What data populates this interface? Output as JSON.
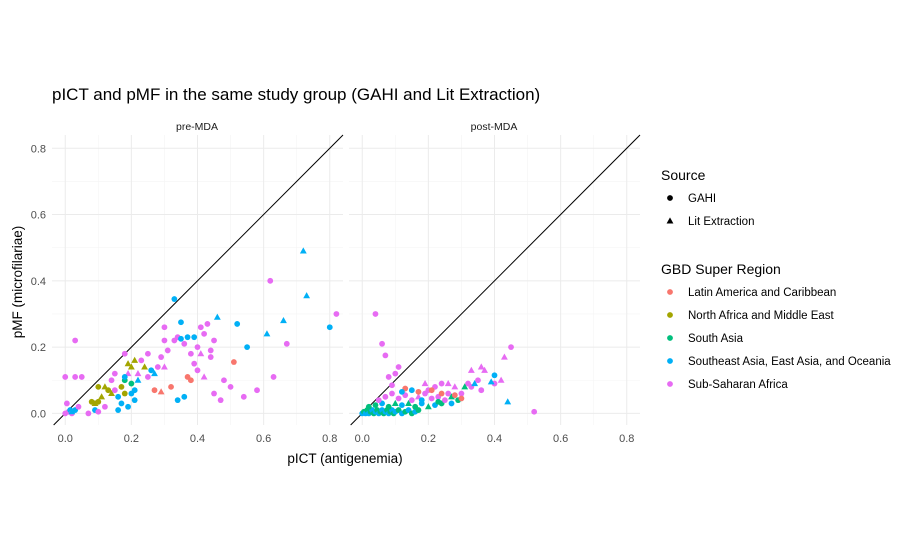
{
  "chart_data": {
    "type": "scatter",
    "title": "pICT and pMF in the same study group (GAHI and Lit Extraction)",
    "xlabel": "pICT (antigenemia)",
    "ylabel": "pMF (microfilariae)",
    "xlim": [
      -0.04,
      0.84
    ],
    "ylim": [
      -0.035,
      0.84
    ],
    "xticks": [
      "0.0",
      "0.2",
      "0.4",
      "0.6",
      "0.8"
    ],
    "yticks": [
      "0.0",
      "0.2",
      "0.4",
      "0.6",
      "0.8"
    ],
    "reference_line": "y = x",
    "grid": true,
    "facets": [
      "pre-MDA",
      "post-MDA"
    ],
    "shape_legend": {
      "title": "Source",
      "entries": [
        {
          "label": "GAHI",
          "shape": "circle"
        },
        {
          "label": "Lit Extraction",
          "shape": "triangle"
        }
      ]
    },
    "color_legend": {
      "title": "GBD Super Region",
      "entries": [
        {
          "label": "Latin America and Caribbean",
          "color": "#F8766D"
        },
        {
          "label": "North Africa and Middle East",
          "color": "#A3A500"
        },
        {
          "label": "South Asia",
          "color": "#00BF7D"
        },
        {
          "label": "Southeast Asia, East Asia, and Oceania",
          "color": "#00B0F6"
        },
        {
          "label": "Sub-Saharan Africa",
          "color": "#E76BF3"
        }
      ]
    },
    "legend_position": "right",
    "panels": [
      {
        "facet": "pre-MDA",
        "points": [
          [
            0.0,
            0.0,
            4,
            "c"
          ],
          [
            0.01,
            0.005,
            4,
            "c"
          ],
          [
            0.015,
            0.01,
            3,
            "c"
          ],
          [
            0.02,
            0.0,
            4,
            "c"
          ],
          [
            0.03,
            0.01,
            3,
            "c"
          ],
          [
            0.04,
            0.02,
            4,
            "c"
          ],
          [
            0.005,
            0.03,
            4,
            "c"
          ],
          [
            0.02,
            0.005,
            3,
            "t"
          ],
          [
            0.0,
            0.11,
            4,
            "c"
          ],
          [
            0.03,
            0.11,
            4,
            "c"
          ],
          [
            0.05,
            0.11,
            4,
            "c"
          ],
          [
            0.03,
            0.22,
            4,
            "c"
          ],
          [
            0.07,
            0.0,
            4,
            "c"
          ],
          [
            0.09,
            0.01,
            3,
            "c"
          ],
          [
            0.1,
            0.005,
            4,
            "c"
          ],
          [
            0.12,
            0.02,
            4,
            "c"
          ],
          [
            0.08,
            0.035,
            1,
            "c"
          ],
          [
            0.1,
            0.035,
            1,
            "c"
          ],
          [
            0.09,
            0.03,
            1,
            "t"
          ],
          [
            0.11,
            0.05,
            1,
            "t"
          ],
          [
            0.12,
            0.08,
            1,
            "t"
          ],
          [
            0.13,
            0.07,
            1,
            "c"
          ],
          [
            0.1,
            0.08,
            1,
            "c"
          ],
          [
            0.14,
            0.06,
            1,
            "t"
          ],
          [
            0.15,
            0.07,
            4,
            "c"
          ],
          [
            0.16,
            0.05,
            3,
            "c"
          ],
          [
            0.17,
            0.08,
            1,
            "c"
          ],
          [
            0.18,
            0.1,
            2,
            "c"
          ],
          [
            0.19,
            0.12,
            4,
            "t"
          ],
          [
            0.2,
            0.14,
            1,
            "t"
          ],
          [
            0.21,
            0.16,
            1,
            "t"
          ],
          [
            0.22,
            0.12,
            4,
            "t"
          ],
          [
            0.24,
            0.14,
            1,
            "t"
          ],
          [
            0.19,
            0.15,
            1,
            "t"
          ],
          [
            0.18,
            0.11,
            3,
            "c"
          ],
          [
            0.2,
            0.09,
            2,
            "c"
          ],
          [
            0.22,
            0.1,
            3,
            "t"
          ],
          [
            0.17,
            0.03,
            3,
            "c"
          ],
          [
            0.19,
            0.02,
            3,
            "c"
          ],
          [
            0.2,
            0.06,
            3,
            "c"
          ],
          [
            0.21,
            0.04,
            3,
            "c"
          ],
          [
            0.16,
            0.01,
            3,
            "c"
          ],
          [
            0.15,
            0.12,
            4,
            "c"
          ],
          [
            0.14,
            0.1,
            4,
            "c"
          ],
          [
            0.18,
            0.18,
            4,
            "c"
          ],
          [
            0.23,
            0.16,
            4,
            "c"
          ],
          [
            0.25,
            0.18,
            4,
            "c"
          ],
          [
            0.26,
            0.13,
            3,
            "c"
          ],
          [
            0.27,
            0.12,
            3,
            "t"
          ],
          [
            0.28,
            0.14,
            4,
            "c"
          ],
          [
            0.27,
            0.07,
            0,
            "c"
          ],
          [
            0.3,
            0.14,
            4,
            "t"
          ],
          [
            0.29,
            0.17,
            4,
            "c"
          ],
          [
            0.3,
            0.22,
            4,
            "c"
          ],
          [
            0.31,
            0.19,
            4,
            "c"
          ],
          [
            0.33,
            0.22,
            4,
            "c"
          ],
          [
            0.34,
            0.23,
            4,
            "c"
          ],
          [
            0.34,
            0.04,
            3,
            "c"
          ],
          [
            0.36,
            0.05,
            3,
            "c"
          ],
          [
            0.35,
            0.275,
            3,
            "c"
          ],
          [
            0.35,
            0.225,
            3,
            "c"
          ],
          [
            0.36,
            0.21,
            4,
            "c"
          ],
          [
            0.37,
            0.23,
            3,
            "c"
          ],
          [
            0.38,
            0.18,
            4,
            "c"
          ],
          [
            0.37,
            0.11,
            0,
            "c"
          ],
          [
            0.38,
            0.1,
            0,
            "c"
          ],
          [
            0.39,
            0.15,
            4,
            "c"
          ],
          [
            0.4,
            0.2,
            4,
            "c"
          ],
          [
            0.41,
            0.26,
            4,
            "c"
          ],
          [
            0.42,
            0.24,
            4,
            "c"
          ],
          [
            0.43,
            0.27,
            4,
            "c"
          ],
          [
            0.44,
            0.19,
            4,
            "c"
          ],
          [
            0.45,
            0.22,
            4,
            "c"
          ],
          [
            0.46,
            0.29,
            3,
            "t"
          ],
          [
            0.45,
            0.06,
            4,
            "c"
          ],
          [
            0.47,
            0.04,
            4,
            "c"
          ],
          [
            0.44,
            0.17,
            4,
            "c"
          ],
          [
            0.42,
            0.11,
            4,
            "t"
          ],
          [
            0.4,
            0.13,
            4,
            "c"
          ],
          [
            0.48,
            0.1,
            4,
            "c"
          ],
          [
            0.5,
            0.08,
            4,
            "c"
          ],
          [
            0.51,
            0.155,
            0,
            "c"
          ],
          [
            0.52,
            0.27,
            3,
            "c"
          ],
          [
            0.54,
            0.05,
            4,
            "c"
          ],
          [
            0.55,
            0.2,
            3,
            "c"
          ],
          [
            0.58,
            0.07,
            4,
            "c"
          ],
          [
            0.61,
            0.24,
            3,
            "t"
          ],
          [
            0.62,
            0.4,
            4,
            "c"
          ],
          [
            0.63,
            0.11,
            4,
            "c"
          ],
          [
            0.66,
            0.28,
            3,
            "t"
          ],
          [
            0.67,
            0.21,
            4,
            "c"
          ],
          [
            0.72,
            0.49,
            3,
            "t"
          ],
          [
            0.73,
            0.355,
            3,
            "t"
          ],
          [
            0.8,
            0.26,
            3,
            "c"
          ],
          [
            0.82,
            0.3,
            4,
            "c"
          ],
          [
            0.33,
            0.345,
            3,
            "c"
          ],
          [
            0.3,
            0.26,
            4,
            "c"
          ],
          [
            0.32,
            0.08,
            0,
            "c"
          ],
          [
            0.29,
            0.065,
            0,
            "t"
          ],
          [
            0.21,
            0.07,
            3,
            "c"
          ],
          [
            0.41,
            0.18,
            4,
            "t"
          ],
          [
            0.39,
            0.23,
            3,
            "c"
          ],
          [
            0.18,
            0.06,
            1,
            "c"
          ],
          [
            0.25,
            0.11,
            4,
            "c"
          ]
        ]
      },
      {
        "facet": "post-MDA",
        "points": [
          [
            0.0,
            0.0,
            3,
            "c"
          ],
          [
            0.005,
            0.005,
            2,
            "c"
          ],
          [
            0.01,
            0.0,
            3,
            "c"
          ],
          [
            0.015,
            0.01,
            2,
            "c"
          ],
          [
            0.02,
            0.0,
            3,
            "c"
          ],
          [
            0.025,
            0.005,
            2,
            "c"
          ],
          [
            0.03,
            0.01,
            3,
            "c"
          ],
          [
            0.035,
            0.0,
            2,
            "c"
          ],
          [
            0.04,
            0.005,
            3,
            "c"
          ],
          [
            0.045,
            0.01,
            2,
            "c"
          ],
          [
            0.05,
            0.0,
            3,
            "c"
          ],
          [
            0.055,
            0.005,
            2,
            "c"
          ],
          [
            0.06,
            0.01,
            3,
            "c"
          ],
          [
            0.065,
            0.0,
            2,
            "c"
          ],
          [
            0.07,
            0.005,
            3,
            "c"
          ],
          [
            0.075,
            0.01,
            2,
            "c"
          ],
          [
            0.08,
            0.0,
            3,
            "c"
          ],
          [
            0.085,
            0.005,
            2,
            "c"
          ],
          [
            0.09,
            0.01,
            3,
            "c"
          ],
          [
            0.095,
            0.0,
            2,
            "c"
          ],
          [
            0.1,
            0.005,
            3,
            "c"
          ],
          [
            0.11,
            0.01,
            2,
            "c"
          ],
          [
            0.12,
            0.0,
            3,
            "c"
          ],
          [
            0.13,
            0.005,
            2,
            "c"
          ],
          [
            0.14,
            0.01,
            3,
            "c"
          ],
          [
            0.15,
            0.0,
            2,
            "c"
          ],
          [
            0.16,
            0.005,
            3,
            "c"
          ],
          [
            0.17,
            0.01,
            2,
            "c"
          ],
          [
            0.02,
            0.02,
            2,
            "c"
          ],
          [
            0.04,
            0.025,
            2,
            "c"
          ],
          [
            0.06,
            0.03,
            3,
            "c"
          ],
          [
            0.08,
            0.02,
            2,
            "c"
          ],
          [
            0.1,
            0.03,
            2,
            "t"
          ],
          [
            0.12,
            0.025,
            3,
            "c"
          ],
          [
            0.14,
            0.03,
            2,
            "t"
          ],
          [
            0.16,
            0.02,
            2,
            "c"
          ],
          [
            0.18,
            0.03,
            3,
            "c"
          ],
          [
            0.2,
            0.02,
            2,
            "t"
          ],
          [
            0.22,
            0.025,
            3,
            "c"
          ],
          [
            0.24,
            0.03,
            2,
            "c"
          ],
          [
            0.05,
            0.04,
            4,
            "c"
          ],
          [
            0.07,
            0.05,
            4,
            "c"
          ],
          [
            0.09,
            0.06,
            4,
            "c"
          ],
          [
            0.11,
            0.045,
            4,
            "c"
          ],
          [
            0.13,
            0.055,
            4,
            "c"
          ],
          [
            0.15,
            0.04,
            4,
            "c"
          ],
          [
            0.17,
            0.05,
            4,
            "t"
          ],
          [
            0.19,
            0.06,
            4,
            "c"
          ],
          [
            0.21,
            0.045,
            4,
            "c"
          ],
          [
            0.23,
            0.05,
            4,
            "c"
          ],
          [
            0.25,
            0.04,
            4,
            "c"
          ],
          [
            0.26,
            0.06,
            4,
            "c"
          ],
          [
            0.19,
            0.09,
            4,
            "t"
          ],
          [
            0.2,
            0.07,
            4,
            "c"
          ],
          [
            0.22,
            0.08,
            4,
            "c"
          ],
          [
            0.24,
            0.09,
            4,
            "c"
          ],
          [
            0.26,
            0.09,
            4,
            "t"
          ],
          [
            0.28,
            0.08,
            4,
            "t"
          ],
          [
            0.3,
            0.06,
            4,
            "c"
          ],
          [
            0.32,
            0.09,
            4,
            "c"
          ],
          [
            0.33,
            0.08,
            4,
            "c"
          ],
          [
            0.35,
            0.1,
            4,
            "c"
          ],
          [
            0.36,
            0.07,
            4,
            "c"
          ],
          [
            0.33,
            0.13,
            4,
            "t"
          ],
          [
            0.36,
            0.14,
            4,
            "t"
          ],
          [
            0.37,
            0.13,
            4,
            "t"
          ],
          [
            0.4,
            0.09,
            4,
            "c"
          ],
          [
            0.42,
            0.1,
            4,
            "t"
          ],
          [
            0.43,
            0.17,
            4,
            "t"
          ],
          [
            0.45,
            0.2,
            4,
            "c"
          ],
          [
            0.52,
            0.005,
            4,
            "c"
          ],
          [
            0.44,
            0.035,
            3,
            "t"
          ],
          [
            0.4,
            0.115,
            3,
            "c"
          ],
          [
            0.39,
            0.095,
            3,
            "t"
          ],
          [
            0.34,
            0.09,
            3,
            "t"
          ],
          [
            0.31,
            0.08,
            2,
            "t"
          ],
          [
            0.29,
            0.04,
            2,
            "c"
          ],
          [
            0.27,
            0.05,
            2,
            "t"
          ],
          [
            0.13,
            0.075,
            0,
            "c"
          ],
          [
            0.17,
            0.065,
            0,
            "c"
          ],
          [
            0.24,
            0.06,
            0,
            "c"
          ],
          [
            0.28,
            0.055,
            0,
            "c"
          ],
          [
            0.3,
            0.045,
            0,
            "c"
          ],
          [
            0.21,
            0.07,
            0,
            "c"
          ],
          [
            0.09,
            0.085,
            4,
            "c"
          ],
          [
            0.08,
            0.11,
            4,
            "c"
          ],
          [
            0.1,
            0.12,
            4,
            "c"
          ],
          [
            0.06,
            0.21,
            4,
            "c"
          ],
          [
            0.04,
            0.3,
            4,
            "c"
          ],
          [
            0.07,
            0.175,
            4,
            "c"
          ],
          [
            0.11,
            0.14,
            4,
            "c"
          ],
          [
            0.18,
            0.04,
            3,
            "c"
          ],
          [
            0.15,
            0.07,
            3,
            "c"
          ],
          [
            0.12,
            0.065,
            3,
            "c"
          ],
          [
            0.23,
            0.035,
            2,
            "c"
          ],
          [
            0.27,
            0.03,
            3,
            "c"
          ]
        ]
      }
    ]
  }
}
